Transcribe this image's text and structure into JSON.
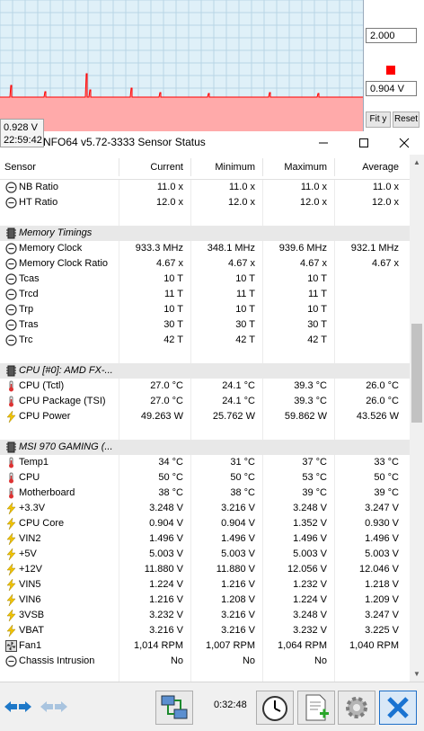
{
  "graph": {
    "max_label": "2.000",
    "current_label": "0.904 V",
    "fit_label": "Fit y",
    "reset_label": "Reset",
    "tooltip_value": "0.928 V",
    "tooltip_time": "22:59:42",
    "series_color": "#ff0000",
    "fill_color": "#ffaaaa"
  },
  "window": {
    "title": "NFO64 v5.72-3333 Sensor Status",
    "minimize_icon": "minimize-icon",
    "maximize_icon": "maximize-icon",
    "close_icon": "close-icon"
  },
  "table": {
    "headers": {
      "sensor": "Sensor",
      "current": "Current",
      "minimum": "Minimum",
      "maximum": "Maximum",
      "average": "Average"
    },
    "rows": [
      {
        "type": "sensor",
        "icon": "clock-icon",
        "name": "NB Ratio",
        "cur": "11.0 x",
        "min": "11.0 x",
        "max": "11.0 x",
        "avg": "11.0 x"
      },
      {
        "type": "sensor",
        "icon": "clock-icon",
        "name": "HT Ratio",
        "cur": "12.0 x",
        "min": "12.0 x",
        "max": "12.0 x",
        "avg": "12.0 x"
      },
      {
        "type": "spacer"
      },
      {
        "type": "group",
        "icon": "chip-icon",
        "name": "Memory Timings"
      },
      {
        "type": "sensor",
        "icon": "clock-icon",
        "name": "Memory Clock",
        "cur": "933.3 MHz",
        "min": "348.1 MHz",
        "max": "939.6 MHz",
        "avg": "932.1 MHz"
      },
      {
        "type": "sensor",
        "icon": "clock-icon",
        "name": "Memory Clock Ratio",
        "cur": "4.67 x",
        "min": "4.67 x",
        "max": "4.67 x",
        "avg": "4.67 x"
      },
      {
        "type": "sensor",
        "icon": "clock-icon",
        "name": "Tcas",
        "cur": "10 T",
        "min": "10 T",
        "max": "10 T",
        "avg": ""
      },
      {
        "type": "sensor",
        "icon": "clock-icon",
        "name": "Trcd",
        "cur": "11 T",
        "min": "11 T",
        "max": "11 T",
        "avg": ""
      },
      {
        "type": "sensor",
        "icon": "clock-icon",
        "name": "Trp",
        "cur": "10 T",
        "min": "10 T",
        "max": "10 T",
        "avg": ""
      },
      {
        "type": "sensor",
        "icon": "clock-icon",
        "name": "Tras",
        "cur": "30 T",
        "min": "30 T",
        "max": "30 T",
        "avg": ""
      },
      {
        "type": "sensor",
        "icon": "clock-icon",
        "name": "Trc",
        "cur": "42 T",
        "min": "42 T",
        "max": "42 T",
        "avg": ""
      },
      {
        "type": "spacer"
      },
      {
        "type": "group",
        "icon": "chip-icon",
        "name": "CPU [#0]: AMD FX-..."
      },
      {
        "type": "sensor",
        "icon": "thermometer-icon",
        "name": "CPU (Tctl)",
        "cur": "27.0 °C",
        "min": "24.1 °C",
        "max": "39.3 °C",
        "avg": "26.0 °C"
      },
      {
        "type": "sensor",
        "icon": "thermometer-icon",
        "name": "CPU Package (TSI)",
        "cur": "27.0 °C",
        "min": "24.1 °C",
        "max": "39.3 °C",
        "avg": "26.0 °C"
      },
      {
        "type": "sensor",
        "icon": "bolt-icon",
        "name": "CPU Power",
        "cur": "49.263 W",
        "min": "25.762 W",
        "max": "59.862 W",
        "avg": "43.526 W"
      },
      {
        "type": "spacer"
      },
      {
        "type": "group",
        "icon": "chip-icon",
        "name": "MSI 970 GAMING (..."
      },
      {
        "type": "sensor",
        "icon": "thermometer-icon",
        "name": "Temp1",
        "cur": "34 °C",
        "min": "31 °C",
        "max": "37 °C",
        "avg": "33 °C"
      },
      {
        "type": "sensor",
        "icon": "thermometer-icon",
        "name": "CPU",
        "cur": "50 °C",
        "min": "50 °C",
        "max": "53 °C",
        "avg": "50 °C"
      },
      {
        "type": "sensor",
        "icon": "thermometer-icon",
        "name": "Motherboard",
        "cur": "38 °C",
        "min": "38 °C",
        "max": "39 °C",
        "avg": "39 °C"
      },
      {
        "type": "sensor",
        "icon": "bolt-icon",
        "name": "+3.3V",
        "cur": "3.248 V",
        "min": "3.216 V",
        "max": "3.248 V",
        "avg": "3.247 V"
      },
      {
        "type": "sensor",
        "icon": "bolt-icon",
        "name": "CPU Core",
        "cur": "0.904 V",
        "min": "0.904 V",
        "max": "1.352 V",
        "avg": "0.930 V"
      },
      {
        "type": "sensor",
        "icon": "bolt-icon",
        "name": "VIN2",
        "cur": "1.496 V",
        "min": "1.496 V",
        "max": "1.496 V",
        "avg": "1.496 V"
      },
      {
        "type": "sensor",
        "icon": "bolt-icon",
        "name": "+5V",
        "cur": "5.003 V",
        "min": "5.003 V",
        "max": "5.003 V",
        "avg": "5.003 V"
      },
      {
        "type": "sensor",
        "icon": "bolt-icon",
        "name": "+12V",
        "cur": "11.880 V",
        "min": "11.880 V",
        "max": "12.056 V",
        "avg": "12.046 V"
      },
      {
        "type": "sensor",
        "icon": "bolt-icon",
        "name": "VIN5",
        "cur": "1.224 V",
        "min": "1.216 V",
        "max": "1.232 V",
        "avg": "1.218 V"
      },
      {
        "type": "sensor",
        "icon": "bolt-icon",
        "name": "VIN6",
        "cur": "1.216 V",
        "min": "1.208 V",
        "max": "1.224 V",
        "avg": "1.209 V"
      },
      {
        "type": "sensor",
        "icon": "bolt-icon",
        "name": "3VSB",
        "cur": "3.232 V",
        "min": "3.216 V",
        "max": "3.248 V",
        "avg": "3.247 V"
      },
      {
        "type": "sensor",
        "icon": "bolt-icon",
        "name": "VBAT",
        "cur": "3.216 V",
        "min": "3.216 V",
        "max": "3.232 V",
        "avg": "3.225 V"
      },
      {
        "type": "sensor",
        "icon": "fan-icon",
        "name": "Fan1",
        "cur": "1,014 RPM",
        "min": "1,007 RPM",
        "max": "1,064 RPM",
        "avg": "1,040 RPM"
      },
      {
        "type": "sensor",
        "icon": "clock-icon",
        "name": "Chassis Intrusion",
        "cur": "No",
        "min": "No",
        "max": "No",
        "avg": ""
      }
    ]
  },
  "toolbar": {
    "elapsed": "0:32:48",
    "nav_icon": "nav-arrows-icon",
    "nav_disabled_icon": "nav-arrows-disabled-icon",
    "network_icon": "network-icon",
    "clock_icon": "stopwatch-icon",
    "log_icon": "log-add-icon",
    "settings_icon": "gear-icon",
    "close_icon": "close-x-icon"
  }
}
